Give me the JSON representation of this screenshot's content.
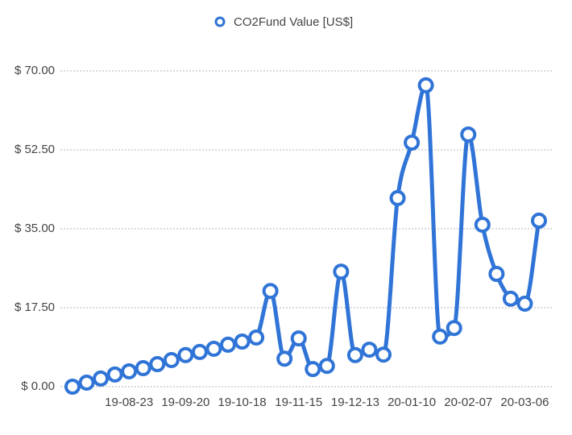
{
  "chart_data": {
    "type": "line",
    "categories": [
      null,
      null,
      null,
      null,
      "19-08-23",
      null,
      null,
      null,
      "19-09-20",
      null,
      null,
      null,
      "19-10-18",
      null,
      null,
      null,
      "19-11-15",
      null,
      null,
      null,
      "19-12-13",
      null,
      null,
      null,
      "20-01-10",
      null,
      null,
      null,
      "20-02-07",
      null,
      null,
      null,
      "20-03-06",
      null
    ],
    "series": [
      {
        "name": "CO2Fund Value [US$]",
        "color": "#2f74d6",
        "values": [
          0,
          0.9,
          1.8,
          2.7,
          3.4,
          4.1,
          5,
          5.9,
          7,
          7.7,
          8.4,
          9.3,
          10,
          10.9,
          21.2,
          6.2,
          10.7,
          3.9,
          4.6,
          25.5,
          7,
          8.2,
          7.1,
          41.8,
          54.1,
          66.8,
          11.1,
          13,
          55.9,
          35.9,
          25,
          19.5,
          18.4,
          36.8
        ]
      }
    ],
    "ylim": [
      0,
      70
    ],
    "yticks": [
      {
        "value": 0,
        "label": "$ 0.00"
      },
      {
        "value": 17.5,
        "label": "$ 17.50"
      },
      {
        "value": 35,
        "label": "$ 35.00"
      },
      {
        "value": 52.5,
        "label": "$ 52.50"
      },
      {
        "value": 70,
        "label": "$ 70.00"
      }
    ],
    "grid": true,
    "legend": "top"
  }
}
